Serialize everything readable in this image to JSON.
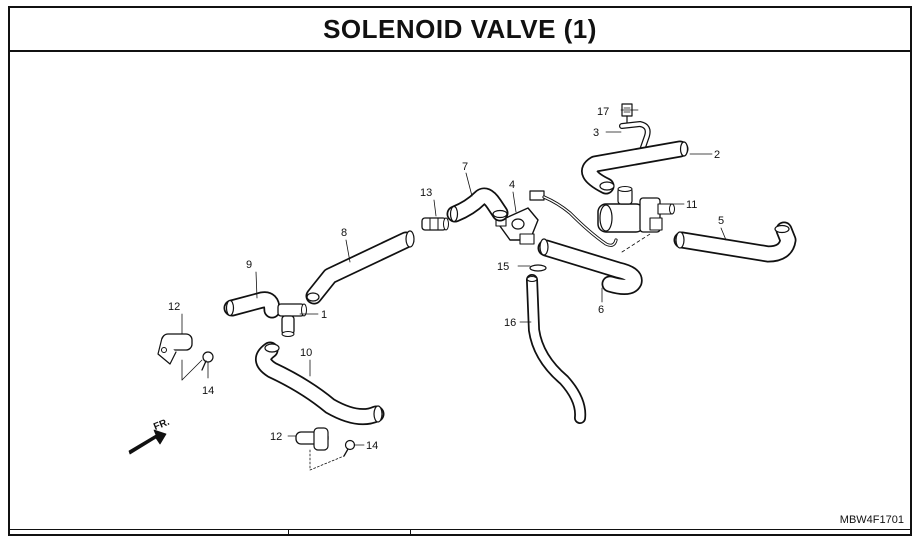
{
  "title": "SOLENOID VALVE (1)",
  "diagram_code": "MBW4F1701",
  "direction_label": "FR.",
  "callouts": {
    "c1": "1",
    "c2": "2",
    "c3": "3",
    "c4": "4",
    "c5": "5",
    "c6": "6",
    "c7": "7",
    "c8": "8",
    "c9": "9",
    "c10": "10",
    "c11": "11",
    "c12a": "12",
    "c12b": "12",
    "c13": "13",
    "c14a": "14",
    "c14b": "14",
    "c15": "15",
    "c16": "16",
    "c17": "17"
  }
}
